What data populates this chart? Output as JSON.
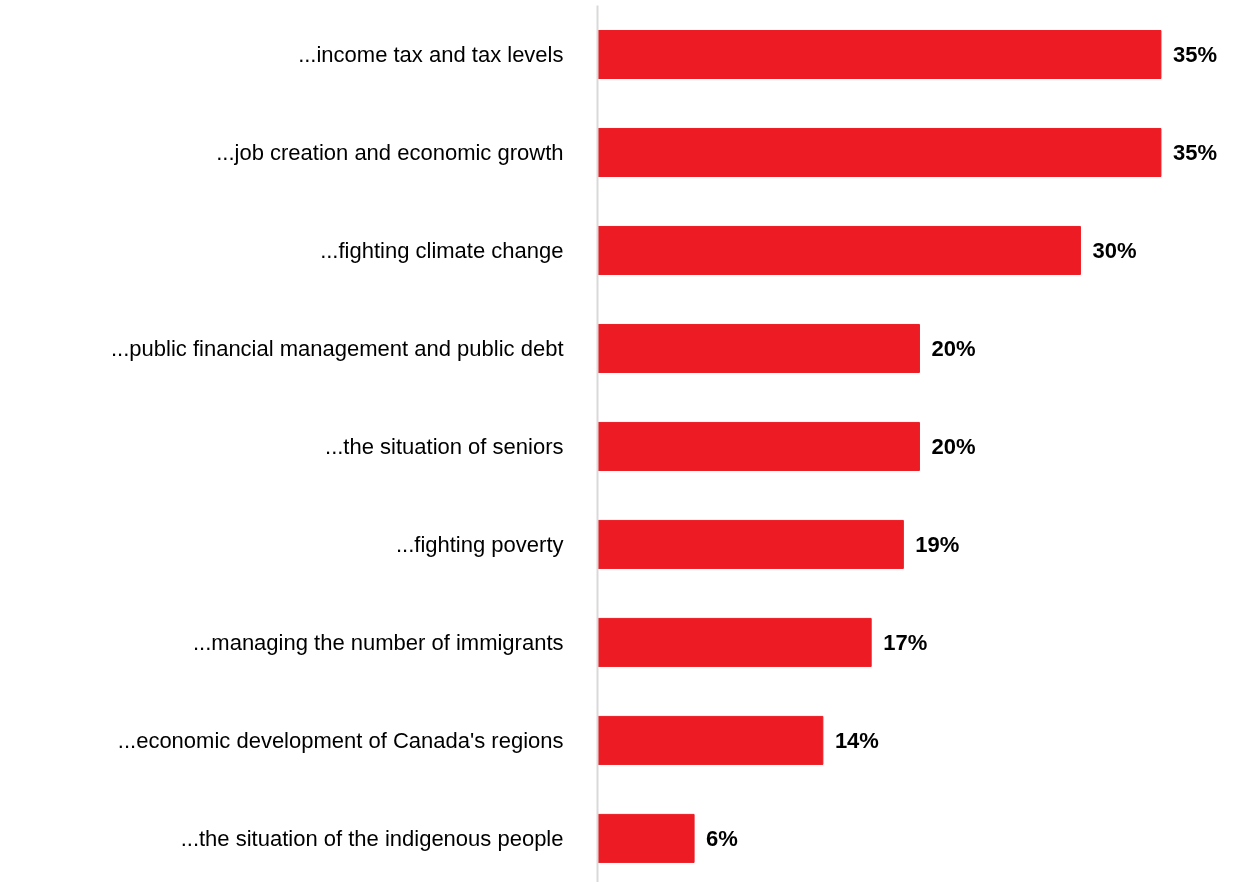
{
  "chart_data": {
    "type": "bar",
    "orientation": "horizontal",
    "categories": [
      "...income tax and tax levels",
      "...job creation and economic growth",
      "...fighting climate change",
      "...public financial management and public debt",
      "...the situation of seniors",
      "...fighting poverty",
      "...managing the number of immigrants",
      "...economic development of Canada's regions",
      "...the situation of the indigenous people"
    ],
    "values": [
      35,
      35,
      30,
      20,
      20,
      19,
      17,
      14,
      6
    ],
    "color": "#ed1c24",
    "value_labels": [
      "35%",
      "35%",
      "30%",
      "20%",
      "20%",
      "19%",
      "17%",
      "14%",
      "6%"
    ]
  }
}
